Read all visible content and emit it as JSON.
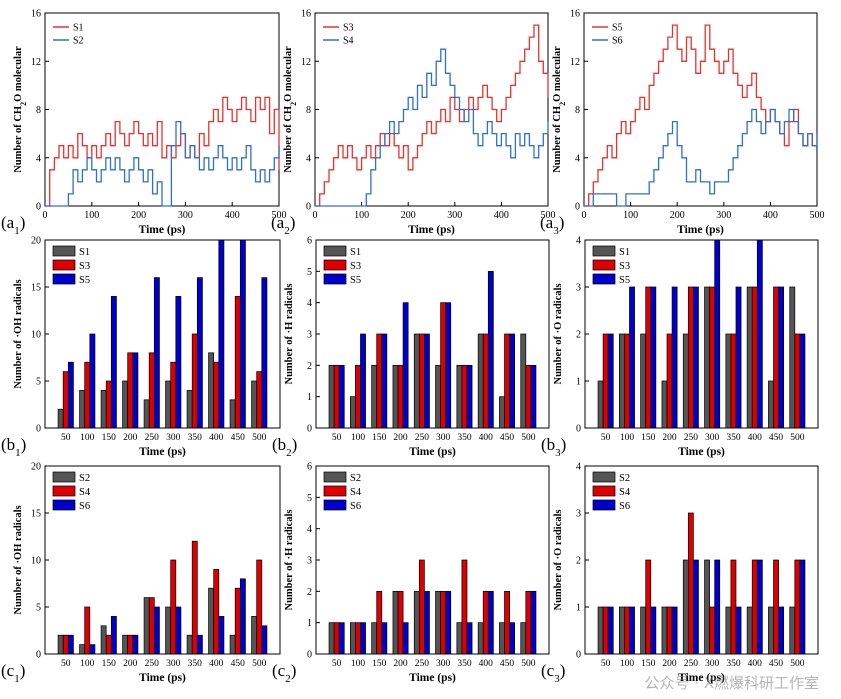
{
  "watermark": "公众号 · X燃爆科研工作室",
  "colors": {
    "S1": "#555555",
    "S3": "#dd0000",
    "S5": "#0000cc",
    "S2": "#555555",
    "S4": "#dd0000",
    "S6": "#0000cc",
    "lineS1": "#e8322e",
    "lineS2": "#2f6fd0",
    "lineS3": "#e8322e",
    "lineS4": "#2f6fd0",
    "lineS5": "#e8322e",
    "lineS6": "#2f6fd0"
  },
  "chart_data": [
    {
      "id": "a1",
      "type": "line",
      "panel_label": "(a",
      "panel_sub": "1",
      "panel_close": ")",
      "ylabel": "Number of CH2O molecular",
      "xlabel": "Time (ps)",
      "xlim": [
        0,
        500
      ],
      "ylim": [
        0,
        16
      ],
      "xticks": [
        0,
        100,
        200,
        300,
        400,
        500
      ],
      "yticks": [
        0,
        4,
        8,
        12,
        16
      ],
      "legend": "top-left",
      "series": [
        {
          "name": "S1",
          "x": [
            0,
            10,
            20,
            30,
            40,
            50,
            60,
            70,
            80,
            90,
            100,
            110,
            120,
            130,
            140,
            150,
            160,
            170,
            180,
            190,
            200,
            210,
            220,
            230,
            240,
            250,
            260,
            270,
            280,
            290,
            300,
            310,
            320,
            330,
            340,
            350,
            360,
            370,
            380,
            390,
            400,
            410,
            420,
            430,
            440,
            450,
            460,
            470,
            480,
            490,
            500
          ],
          "y": [
            0,
            3,
            4,
            5,
            4,
            5,
            4,
            6,
            5,
            4,
            5,
            4,
            5,
            6,
            5,
            7,
            6,
            5,
            6,
            7,
            6,
            5,
            6,
            5,
            7,
            4,
            5,
            4,
            5,
            6,
            4,
            5,
            4,
            6,
            5,
            7,
            8,
            7,
            9,
            8,
            7,
            8,
            9,
            8,
            7,
            9,
            8,
            9,
            6,
            8,
            3
          ]
        },
        {
          "name": "S2",
          "x": [
            0,
            10,
            20,
            30,
            40,
            50,
            60,
            70,
            80,
            90,
            100,
            110,
            120,
            130,
            140,
            150,
            160,
            170,
            180,
            190,
            200,
            210,
            220,
            230,
            240,
            250,
            260,
            270,
            280,
            290,
            300,
            310,
            320,
            330,
            340,
            350,
            360,
            370,
            380,
            390,
            400,
            410,
            420,
            430,
            440,
            450,
            460,
            470,
            480,
            490,
            500
          ],
          "y": [
            0,
            0,
            0,
            0,
            0,
            1,
            3,
            2,
            3,
            4,
            3,
            2,
            3,
            4,
            3,
            4,
            3,
            2,
            3,
            4,
            3,
            2,
            3,
            1,
            2,
            0,
            0,
            5,
            7,
            6,
            4,
            5,
            4,
            3,
            4,
            3,
            4,
            5,
            4,
            3,
            4,
            3,
            4,
            5,
            3,
            2,
            3,
            2,
            3,
            4,
            5
          ]
        }
      ]
    },
    {
      "id": "a2",
      "type": "line",
      "panel_label": "(a",
      "panel_sub": "2",
      "panel_close": ")",
      "ylabel": "Number of CH2O molecular",
      "xlabel": "Time (ps)",
      "xlim": [
        0,
        500
      ],
      "ylim": [
        0,
        16
      ],
      "xticks": [
        0,
        100,
        200,
        300,
        400,
        500
      ],
      "yticks": [
        0,
        4,
        8,
        12,
        16
      ],
      "legend": "top-left",
      "series": [
        {
          "name": "S3",
          "x": [
            0,
            10,
            20,
            30,
            40,
            50,
            60,
            70,
            80,
            90,
            100,
            110,
            120,
            130,
            140,
            150,
            160,
            170,
            180,
            190,
            200,
            210,
            220,
            230,
            240,
            250,
            260,
            270,
            280,
            290,
            300,
            310,
            320,
            330,
            340,
            350,
            360,
            370,
            380,
            390,
            400,
            410,
            420,
            430,
            440,
            450,
            460,
            470,
            480,
            490,
            500
          ],
          "y": [
            0,
            1,
            2,
            3,
            4,
            5,
            4,
            5,
            4,
            3,
            4,
            5,
            4,
            5,
            6,
            5,
            6,
            5,
            4,
            5,
            3,
            4,
            5,
            6,
            7,
            6,
            7,
            8,
            7,
            9,
            8,
            7,
            8,
            9,
            8,
            9,
            10,
            9,
            8,
            7,
            8,
            9,
            10,
            11,
            12,
            13,
            14,
            15,
            12,
            11,
            9
          ]
        },
        {
          "name": "S4",
          "x": [
            0,
            10,
            20,
            30,
            40,
            50,
            60,
            70,
            80,
            90,
            100,
            110,
            120,
            130,
            140,
            150,
            160,
            170,
            180,
            190,
            200,
            210,
            220,
            230,
            240,
            250,
            260,
            270,
            280,
            290,
            300,
            310,
            320,
            330,
            340,
            350,
            360,
            370,
            380,
            390,
            400,
            410,
            420,
            430,
            440,
            450,
            460,
            470,
            480,
            490,
            500
          ],
          "y": [
            0,
            0,
            0,
            0,
            0,
            0,
            0,
            0,
            0,
            0,
            0,
            1,
            3,
            4,
            5,
            6,
            7,
            6,
            7,
            8,
            9,
            8,
            10,
            9,
            11,
            10,
            12,
            13,
            11,
            10,
            9,
            8,
            7,
            8,
            6,
            5,
            6,
            7,
            6,
            5,
            6,
            5,
            4,
            6,
            5,
            6,
            5,
            4,
            5,
            6,
            7
          ]
        }
      ]
    },
    {
      "id": "a3",
      "type": "line",
      "panel_label": "(a",
      "panel_sub": "3",
      "panel_close": ")",
      "ylabel": "Number of CH2O molecular",
      "xlabel": "Time (ps)",
      "xlim": [
        0,
        500
      ],
      "ylim": [
        0,
        16
      ],
      "xticks": [
        0,
        100,
        200,
        300,
        400,
        500
      ],
      "yticks": [
        0,
        4,
        8,
        12,
        16
      ],
      "legend": "top-left",
      "series": [
        {
          "name": "S5",
          "x": [
            0,
            10,
            20,
            30,
            40,
            50,
            60,
            70,
            80,
            90,
            100,
            110,
            120,
            130,
            140,
            150,
            160,
            170,
            180,
            190,
            200,
            210,
            220,
            230,
            240,
            250,
            260,
            270,
            280,
            290,
            300,
            310,
            320,
            330,
            340,
            350,
            360,
            370,
            380,
            390,
            400,
            410,
            420,
            430,
            440,
            450,
            460,
            470,
            480,
            490,
            500
          ],
          "y": [
            0,
            1,
            2,
            3,
            4,
            5,
            4,
            6,
            7,
            6,
            7,
            8,
            9,
            8,
            10,
            11,
            12,
            13,
            14,
            15,
            13,
            12,
            14,
            13,
            11,
            12,
            15,
            13,
            12,
            11,
            12,
            13,
            11,
            10,
            9,
            10,
            11,
            9,
            8,
            7,
            8,
            7,
            6,
            5,
            7,
            8,
            6,
            5,
            6,
            5,
            6
          ]
        },
        {
          "name": "S6",
          "x": [
            0,
            10,
            20,
            30,
            40,
            50,
            60,
            70,
            80,
            90,
            100,
            110,
            120,
            130,
            140,
            150,
            160,
            170,
            180,
            190,
            200,
            210,
            220,
            230,
            240,
            250,
            260,
            270,
            280,
            290,
            300,
            310,
            320,
            330,
            340,
            350,
            360,
            370,
            380,
            390,
            400,
            410,
            420,
            430,
            440,
            450,
            460,
            470,
            480,
            490,
            500
          ],
          "y": [
            0,
            0,
            1,
            1,
            1,
            1,
            1,
            0,
            0,
            1,
            1,
            1,
            1,
            1,
            2,
            3,
            4,
            5,
            6,
            7,
            5,
            4,
            2,
            2,
            3,
            2,
            2,
            1,
            2,
            2,
            2,
            3,
            4,
            5,
            6,
            7,
            8,
            7,
            6,
            7,
            8,
            7,
            6,
            7,
            8,
            7,
            6,
            5,
            6,
            5,
            6
          ]
        }
      ]
    },
    {
      "id": "b1",
      "type": "bar",
      "panel_label": "(b",
      "panel_sub": "1",
      "panel_close": ")",
      "ylabel": "Number of ·OH radicals",
      "xlabel": "Time (ps)",
      "ylim": [
        0,
        20
      ],
      "yticks": [
        0,
        5,
        10,
        15,
        20
      ],
      "categories": [
        "50",
        "100",
        "150",
        "200",
        "250",
        "300",
        "350",
        "400",
        "450",
        "500"
      ],
      "legend": "top-left",
      "series": [
        {
          "name": "S1",
          "values": [
            2,
            4,
            4,
            5,
            3,
            5,
            4,
            8,
            3,
            5
          ]
        },
        {
          "name": "S3",
          "values": [
            6,
            7,
            5,
            8,
            8,
            7,
            10,
            7,
            14,
            6
          ]
        },
        {
          "name": "S5",
          "values": [
            7,
            10,
            14,
            8,
            16,
            14,
            16,
            20,
            20,
            16
          ]
        }
      ]
    },
    {
      "id": "b2",
      "type": "bar",
      "panel_label": "(b",
      "panel_sub": "2",
      "panel_close": ")",
      "ylabel": "Number of ·H radicals",
      "xlabel": "Time (ps)",
      "ylim": [
        0,
        6
      ],
      "yticks": [
        0,
        1,
        2,
        3,
        4,
        5,
        6
      ],
      "categories": [
        "50",
        "100",
        "150",
        "200",
        "250",
        "300",
        "350",
        "400",
        "450",
        "500"
      ],
      "legend": "top-left",
      "series": [
        {
          "name": "S1",
          "values": [
            2,
            1,
            2,
            2,
            3,
            2,
            2,
            3,
            1,
            3
          ]
        },
        {
          "name": "S3",
          "values": [
            2,
            2,
            3,
            2,
            3,
            4,
            2,
            3,
            3,
            2
          ]
        },
        {
          "name": "S5",
          "values": [
            2,
            3,
            3,
            4,
            3,
            4,
            2,
            5,
            3,
            2
          ]
        }
      ]
    },
    {
      "id": "b3",
      "type": "bar",
      "panel_label": "(b",
      "panel_sub": "3",
      "panel_close": ")",
      "ylabel": "Number of ·O radicals",
      "xlabel": "Time (ps)",
      "ylim": [
        0,
        4
      ],
      "yticks": [
        0,
        1,
        2,
        3,
        4
      ],
      "categories": [
        "50",
        "100",
        "150",
        "200",
        "250",
        "300",
        "350",
        "400",
        "450",
        "500"
      ],
      "legend": "top-left",
      "series": [
        {
          "name": "S1",
          "values": [
            1,
            2,
            2,
            1,
            2,
            3,
            2,
            3,
            1,
            3
          ]
        },
        {
          "name": "S3",
          "values": [
            2,
            2,
            3,
            2,
            3,
            3,
            2,
            3,
            3,
            2
          ]
        },
        {
          "name": "S5",
          "values": [
            2,
            3,
            3,
            3,
            3,
            4,
            3,
            4,
            3,
            2
          ]
        }
      ]
    },
    {
      "id": "c1",
      "type": "bar",
      "panel_label": "(c",
      "panel_sub": "1",
      "panel_close": ")",
      "ylabel": "Number of ·OH radicals",
      "xlabel": "Time (ps)",
      "ylim": [
        0,
        20
      ],
      "yticks": [
        0,
        5,
        10,
        15,
        20
      ],
      "categories": [
        "50",
        "100",
        "150",
        "200",
        "250",
        "300",
        "350",
        "400",
        "450",
        "500"
      ],
      "legend": "top-left",
      "series": [
        {
          "name": "S2",
          "values": [
            2,
            1,
            3,
            2,
            6,
            5,
            2,
            7,
            2,
            4
          ]
        },
        {
          "name": "S4",
          "values": [
            2,
            5,
            2,
            2,
            6,
            10,
            12,
            9,
            7,
            10
          ]
        },
        {
          "name": "S6",
          "values": [
            2,
            1,
            4,
            2,
            5,
            5,
            2,
            4,
            8,
            3
          ]
        }
      ]
    },
    {
      "id": "c2",
      "type": "bar",
      "panel_label": "(c",
      "panel_sub": "2",
      "panel_close": ")",
      "ylabel": "Number of ·H radicals",
      "xlabel": "Time (ps)",
      "ylim": [
        0,
        6
      ],
      "yticks": [
        0,
        1,
        2,
        3,
        4,
        5,
        6
      ],
      "categories": [
        "50",
        "100",
        "150",
        "200",
        "250",
        "300",
        "350",
        "400",
        "450",
        "500"
      ],
      "legend": "top-left",
      "series": [
        {
          "name": "S2",
          "values": [
            1,
            1,
            1,
            2,
            2,
            2,
            1,
            1,
            1,
            1
          ]
        },
        {
          "name": "S4",
          "values": [
            1,
            1,
            2,
            2,
            3,
            2,
            3,
            2,
            2,
            2
          ]
        },
        {
          "name": "S6",
          "values": [
            1,
            1,
            1,
            1,
            2,
            2,
            1,
            2,
            1,
            2
          ]
        }
      ]
    },
    {
      "id": "c3",
      "type": "bar",
      "panel_label": "(c",
      "panel_sub": "3",
      "panel_close": ")",
      "ylabel": "Number of ·O radicals",
      "xlabel": "Time (ps)",
      "ylim": [
        0,
        4
      ],
      "yticks": [
        0,
        1,
        2,
        3,
        4
      ],
      "categories": [
        "50",
        "100",
        "150",
        "200",
        "250",
        "300",
        "350",
        "400",
        "450",
        "500"
      ],
      "legend": "top-left",
      "series": [
        {
          "name": "S2",
          "values": [
            1,
            1,
            1,
            1,
            2,
            2,
            1,
            1,
            1,
            1
          ]
        },
        {
          "name": "S4",
          "values": [
            1,
            1,
            2,
            1,
            3,
            1,
            2,
            2,
            2,
            2
          ]
        },
        {
          "name": "S6",
          "values": [
            1,
            1,
            1,
            1,
            2,
            2,
            1,
            2,
            1,
            2
          ]
        }
      ]
    }
  ]
}
